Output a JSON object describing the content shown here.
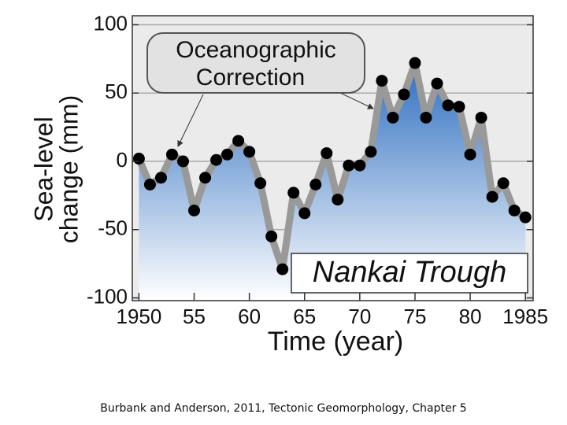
{
  "chart_data": {
    "type": "line",
    "ylabel": [
      "Sea-level",
      "change (mm)"
    ],
    "xlabel": "Time (year)",
    "annotations": [
      "Oceanographic",
      "Correction",
      "Nankai Trough"
    ],
    "caption": "Burbank and Anderson, 2011, Tectonic Geomorphology, Chapter 5",
    "x": [
      1950,
      1951,
      1952,
      1953,
      1954,
      1955,
      1956,
      1957,
      1958,
      1959,
      1960,
      1961,
      1962,
      1963,
      1964,
      1965,
      1966,
      1967,
      1968,
      1969,
      1970,
      1971,
      1972,
      1973,
      1974,
      1975,
      1976,
      1977,
      1978,
      1979,
      1980,
      1981,
      1982,
      1983,
      1984,
      1985
    ],
    "series": [
      {
        "color": "#999999",
        "values": [
          2,
          -17,
          -12,
          5,
          0,
          -36,
          -12,
          1,
          5,
          15,
          7,
          -16,
          -55,
          -79,
          -23,
          -38,
          -17,
          6,
          -28,
          -3,
          -3,
          7,
          59,
          32,
          49,
          72,
          32,
          57,
          41,
          40,
          5,
          32,
          -26,
          -16,
          -36,
          -41
        ]
      }
    ],
    "xlim": [
      1949.4,
      1985.7
    ],
    "ylim": [
      -102,
      106.6
    ],
    "xticks": [
      1950,
      {
        "value": 1955,
        "label": "55"
      },
      {
        "value": 1960,
        "label": "60"
      },
      {
        "value": 1965,
        "label": "65"
      },
      {
        "value": 1970,
        "label": "70"
      },
      {
        "value": 1975,
        "label": "75"
      },
      {
        "value": 1980,
        "label": "80"
      },
      1985
    ],
    "yticks": [
      -100,
      -50,
      0,
      50,
      100
    ],
    "grid": true
  }
}
